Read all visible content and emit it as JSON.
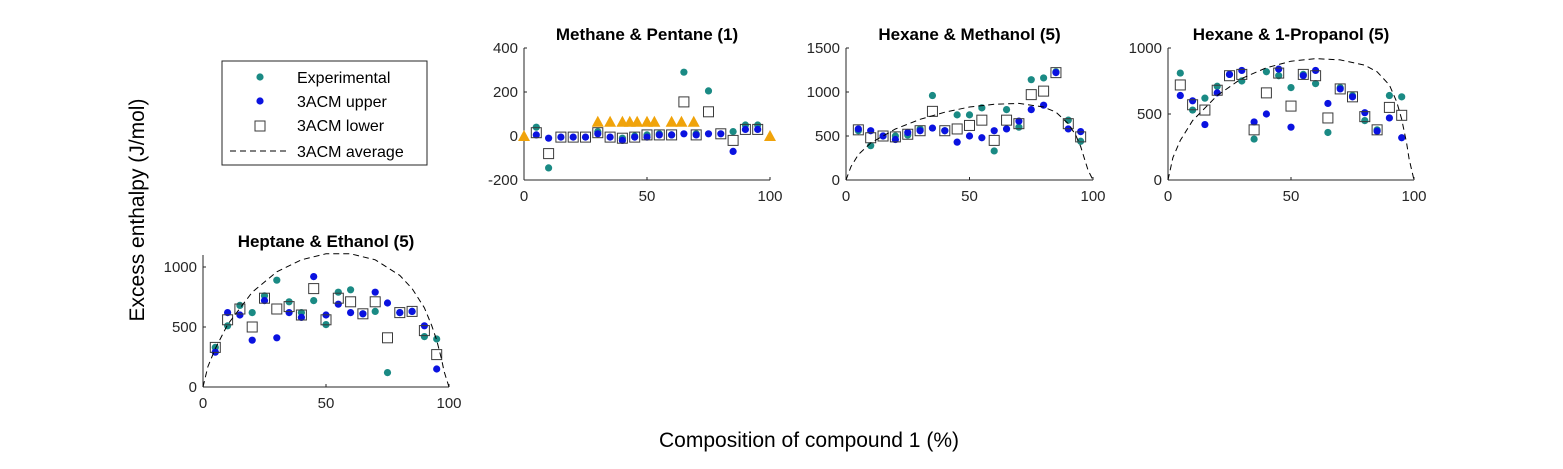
{
  "figure": {
    "ylabel": "Excess enthalpy (J/mol)",
    "xlabel": "Composition of compound 1 (%)"
  },
  "legend": {
    "items": [
      {
        "label": "Experimental",
        "marker": "filled-circle",
        "color": "#1a8a84"
      },
      {
        "label": "3ACM upper",
        "marker": "filled-circle",
        "color": "#0a12e0"
      },
      {
        "label": "3ACM lower",
        "marker": "open-square",
        "color": "#3a3a3a"
      },
      {
        "label": "3ACM average",
        "marker": "dashed-line",
        "color": "#000000"
      }
    ]
  },
  "colors": {
    "experimental": "#1a8a84",
    "upper": "#0a12e0",
    "lower": "#3a3a3a",
    "average": "#000000",
    "triangle": "#f0a30a"
  },
  "chart_data": [
    {
      "type": "scatter",
      "title": "Methane & Pentane (1)",
      "xlim": [
        0,
        100
      ],
      "ylim": [
        -200,
        400
      ],
      "xticks": [
        "0",
        "50",
        "100"
      ],
      "yticks": [
        "-200",
        "0",
        "200",
        "400"
      ],
      "series": [
        {
          "name": "Experimental",
          "x": [
            5,
            10,
            30,
            40,
            45,
            50,
            55,
            60,
            65,
            70,
            75,
            85,
            90,
            95
          ],
          "y": [
            40,
            -145,
            20,
            -10,
            0,
            5,
            10,
            5,
            290,
            10,
            205,
            20,
            50,
            50
          ]
        },
        {
          "name": "3ACM upper",
          "x": [
            5,
            10,
            15,
            20,
            25,
            30,
            35,
            40,
            45,
            50,
            55,
            60,
            65,
            70,
            75,
            80,
            85,
            90,
            95
          ],
          "y": [
            5,
            -10,
            -5,
            -5,
            -5,
            10,
            -5,
            -20,
            -5,
            -5,
            5,
            5,
            10,
            5,
            10,
            10,
            -70,
            30,
            30
          ]
        },
        {
          "name": "3ACM lower",
          "x": [
            5,
            10,
            15,
            20,
            25,
            30,
            35,
            40,
            45,
            50,
            55,
            60,
            65,
            70,
            75,
            80,
            85,
            90,
            95
          ],
          "y": [
            15,
            -80,
            -5,
            -5,
            -5,
            15,
            -5,
            -10,
            -5,
            5,
            5,
            5,
            155,
            5,
            110,
            10,
            -20,
            30,
            30
          ]
        },
        {
          "name": "",
          "marker": "triangle",
          "x": [
            0,
            30,
            35,
            40,
            43,
            46,
            50,
            53,
            60,
            64,
            69,
            100
          ],
          "y": [
            0,
            65,
            65,
            65,
            65,
            65,
            65,
            65,
            65,
            65,
            65,
            0
          ]
        }
      ]
    },
    {
      "type": "scatter",
      "title": "Hexane & Methanol (5)",
      "xlim": [
        0,
        100
      ],
      "ylim": [
        0,
        1500
      ],
      "xticks": [
        "0",
        "50",
        "100"
      ],
      "yticks": [
        "0",
        "500",
        "1000",
        "1500"
      ],
      "series": [
        {
          "name": "Experimental",
          "x": [
            5,
            10,
            15,
            20,
            25,
            30,
            35,
            40,
            45,
            50,
            55,
            60,
            65,
            70,
            75,
            80,
            85,
            90,
            95
          ],
          "y": [
            560,
            390,
            500,
            500,
            510,
            580,
            960,
            560,
            740,
            740,
            820,
            330,
            800,
            600,
            1140,
            1160,
            1230,
            680,
            440
          ]
        },
        {
          "name": "3ACM upper",
          "x": [
            5,
            10,
            15,
            20,
            25,
            30,
            35,
            40,
            45,
            50,
            55,
            60,
            65,
            70,
            75,
            80,
            85,
            90,
            95
          ],
          "y": [
            580,
            560,
            500,
            460,
            540,
            560,
            590,
            560,
            430,
            500,
            480,
            560,
            580,
            670,
            800,
            850,
            1220,
            580,
            550
          ]
        },
        {
          "name": "3ACM lower",
          "x": [
            5,
            10,
            15,
            20,
            25,
            30,
            35,
            40,
            45,
            50,
            55,
            60,
            65,
            70,
            75,
            80,
            85,
            90,
            95
          ],
          "y": [
            570,
            480,
            500,
            490,
            520,
            560,
            780,
            560,
            580,
            620,
            680,
            450,
            680,
            640,
            970,
            1010,
            1220,
            640,
            490
          ]
        },
        {
          "name": "3ACM average",
          "line": "dashed",
          "x": [
            0,
            2,
            5,
            10,
            20,
            30,
            40,
            50,
            60,
            70,
            80,
            85,
            90,
            93,
            95,
            97,
            98,
            100
          ],
          "y": [
            0,
            150,
            290,
            420,
            580,
            690,
            770,
            830,
            860,
            870,
            830,
            770,
            640,
            510,
            380,
            200,
            110,
            0
          ]
        }
      ]
    },
    {
      "type": "scatter",
      "title": "Hexane & 1-Propanol (5)",
      "xlim": [
        0,
        100
      ],
      "ylim": [
        0,
        1000
      ],
      "xticks": [
        "0",
        "50",
        "100"
      ],
      "yticks": [
        "0",
        "500",
        "1000"
      ],
      "series": [
        {
          "name": "Experimental",
          "x": [
            5,
            10,
            15,
            20,
            25,
            30,
            35,
            40,
            45,
            50,
            55,
            60,
            65,
            70,
            75,
            80,
            85,
            90,
            95
          ],
          "y": [
            810,
            530,
            620,
            710,
            800,
            750,
            310,
            820,
            790,
            700,
            800,
            730,
            360,
            700,
            640,
            450,
            380,
            640,
            630
          ]
        },
        {
          "name": "3ACM upper",
          "x": [
            5,
            10,
            15,
            20,
            25,
            30,
            35,
            40,
            45,
            50,
            55,
            60,
            65,
            70,
            75,
            80,
            85,
            90,
            95
          ],
          "y": [
            640,
            600,
            420,
            660,
            800,
            830,
            440,
            500,
            840,
            400,
            790,
            830,
            580,
            690,
            630,
            510,
            370,
            470,
            320
          ]
        },
        {
          "name": "3ACM lower",
          "x": [
            5,
            10,
            15,
            20,
            25,
            30,
            35,
            40,
            45,
            50,
            55,
            60,
            65,
            70,
            75,
            80,
            85,
            90,
            95
          ],
          "y": [
            720,
            570,
            530,
            680,
            790,
            800,
            380,
            660,
            810,
            560,
            800,
            790,
            470,
            690,
            630,
            480,
            380,
            550,
            490
          ]
        },
        {
          "name": "3ACM average",
          "line": "dashed",
          "x": [
            0,
            2,
            5,
            10,
            20,
            30,
            40,
            50,
            60,
            70,
            80,
            85,
            90,
            93,
            95,
            97,
            98,
            100
          ],
          "y": [
            0,
            170,
            300,
            450,
            640,
            770,
            850,
            900,
            920,
            910,
            870,
            820,
            720,
            590,
            460,
            280,
            160,
            0
          ]
        }
      ]
    },
    {
      "type": "scatter",
      "title": "Heptane & Ethanol (5)",
      "xlim": [
        0,
        100
      ],
      "ylim": [
        0,
        1100
      ],
      "xticks": [
        "0",
        "50",
        "100"
      ],
      "yticks": [
        "0",
        "500",
        "1000"
      ],
      "series": [
        {
          "name": "Experimental",
          "x": [
            5,
            10,
            15,
            20,
            25,
            30,
            35,
            40,
            45,
            50,
            55,
            60,
            65,
            70,
            75,
            80,
            85,
            90,
            95
          ],
          "y": [
            330,
            510,
            680,
            620,
            760,
            890,
            710,
            620,
            720,
            520,
            790,
            810,
            610,
            630,
            120,
            620,
            630,
            420,
            400
          ]
        },
        {
          "name": "3ACM upper",
          "x": [
            5,
            10,
            15,
            20,
            25,
            30,
            35,
            40,
            45,
            50,
            55,
            60,
            65,
            70,
            75,
            80,
            85,
            90,
            95
          ],
          "y": [
            290,
            620,
            600,
            390,
            720,
            410,
            620,
            580,
            920,
            600,
            690,
            620,
            610,
            790,
            700,
            620,
            630,
            510,
            150
          ]
        },
        {
          "name": "3ACM lower",
          "x": [
            5,
            10,
            15,
            20,
            25,
            30,
            35,
            40,
            45,
            50,
            55,
            60,
            65,
            70,
            75,
            80,
            85,
            90,
            95
          ],
          "y": [
            330,
            560,
            650,
            500,
            740,
            650,
            670,
            600,
            820,
            560,
            740,
            710,
            610,
            710,
            410,
            620,
            630,
            470,
            270
          ]
        },
        {
          "name": "3ACM average",
          "line": "dashed",
          "x": [
            0,
            2,
            5,
            10,
            20,
            30,
            40,
            50,
            60,
            70,
            80,
            85,
            90,
            93,
            95,
            97,
            98,
            100
          ],
          "y": [
            0,
            170,
            320,
            520,
            790,
            960,
            1060,
            1110,
            1110,
            1060,
            930,
            820,
            660,
            510,
            390,
            230,
            130,
            0
          ]
        }
      ]
    }
  ]
}
